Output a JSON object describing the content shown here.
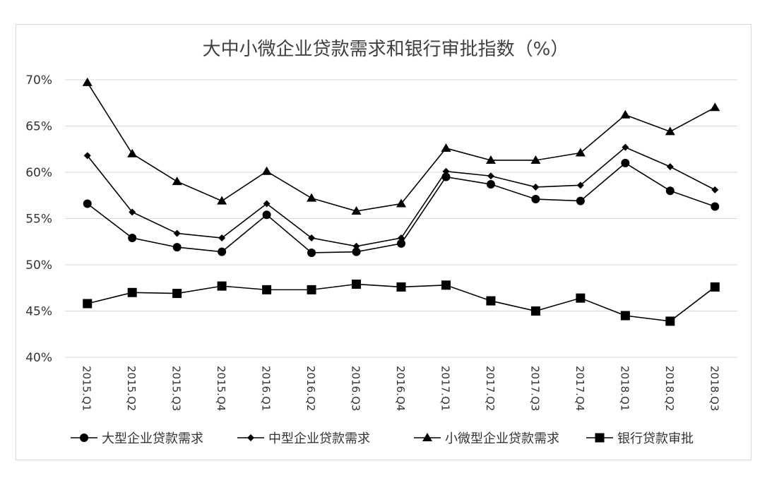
{
  "chart_data": {
    "type": "line",
    "title": "大中小微企业贷款需求和银行审批指数（%）",
    "categories": [
      "2015.Q1",
      "2015.Q2",
      "2015.Q3",
      "2015.Q4",
      "2016.Q1",
      "2016.Q2",
      "2016.Q3",
      "2016.Q4",
      "2017.Q1",
      "2017.Q2",
      "2017.Q3",
      "2017.Q4",
      "2018.Q1",
      "2018.Q2",
      "2018.Q3"
    ],
    "ylim": [
      40,
      70
    ],
    "yticks": [
      40,
      45,
      50,
      55,
      60,
      65,
      70
    ],
    "ytick_labels": [
      "40%",
      "45%",
      "50%",
      "55%",
      "60%",
      "65%",
      "70%"
    ],
    "grid": true,
    "legend_position": "bottom",
    "series": [
      {
        "name": "大型企业贷款需求",
        "marker": "circle",
        "values": [
          56.6,
          52.9,
          51.9,
          51.4,
          55.4,
          51.3,
          51.4,
          52.3,
          59.5,
          58.7,
          57.1,
          56.9,
          61.0,
          58.0,
          56.3
        ]
      },
      {
        "name": "中型企业贷款需求",
        "marker": "diamond",
        "values": [
          61.8,
          55.7,
          53.4,
          52.9,
          56.6,
          52.9,
          52.0,
          52.9,
          60.1,
          59.6,
          58.4,
          58.6,
          62.7,
          60.6,
          58.1
        ]
      },
      {
        "name": "小微型企业贷款需求",
        "marker": "triangle",
        "values": [
          69.7,
          62.0,
          59.0,
          56.9,
          60.1,
          57.2,
          55.8,
          56.6,
          62.6,
          61.3,
          61.3,
          62.1,
          66.2,
          64.4,
          67.0
        ]
      },
      {
        "name": "银行贷款审批",
        "marker": "square",
        "values": [
          45.8,
          47.0,
          46.9,
          47.7,
          47.3,
          47.3,
          47.9,
          47.6,
          47.8,
          46.1,
          45.0,
          46.4,
          44.5,
          43.9,
          47.6
        ]
      }
    ]
  }
}
